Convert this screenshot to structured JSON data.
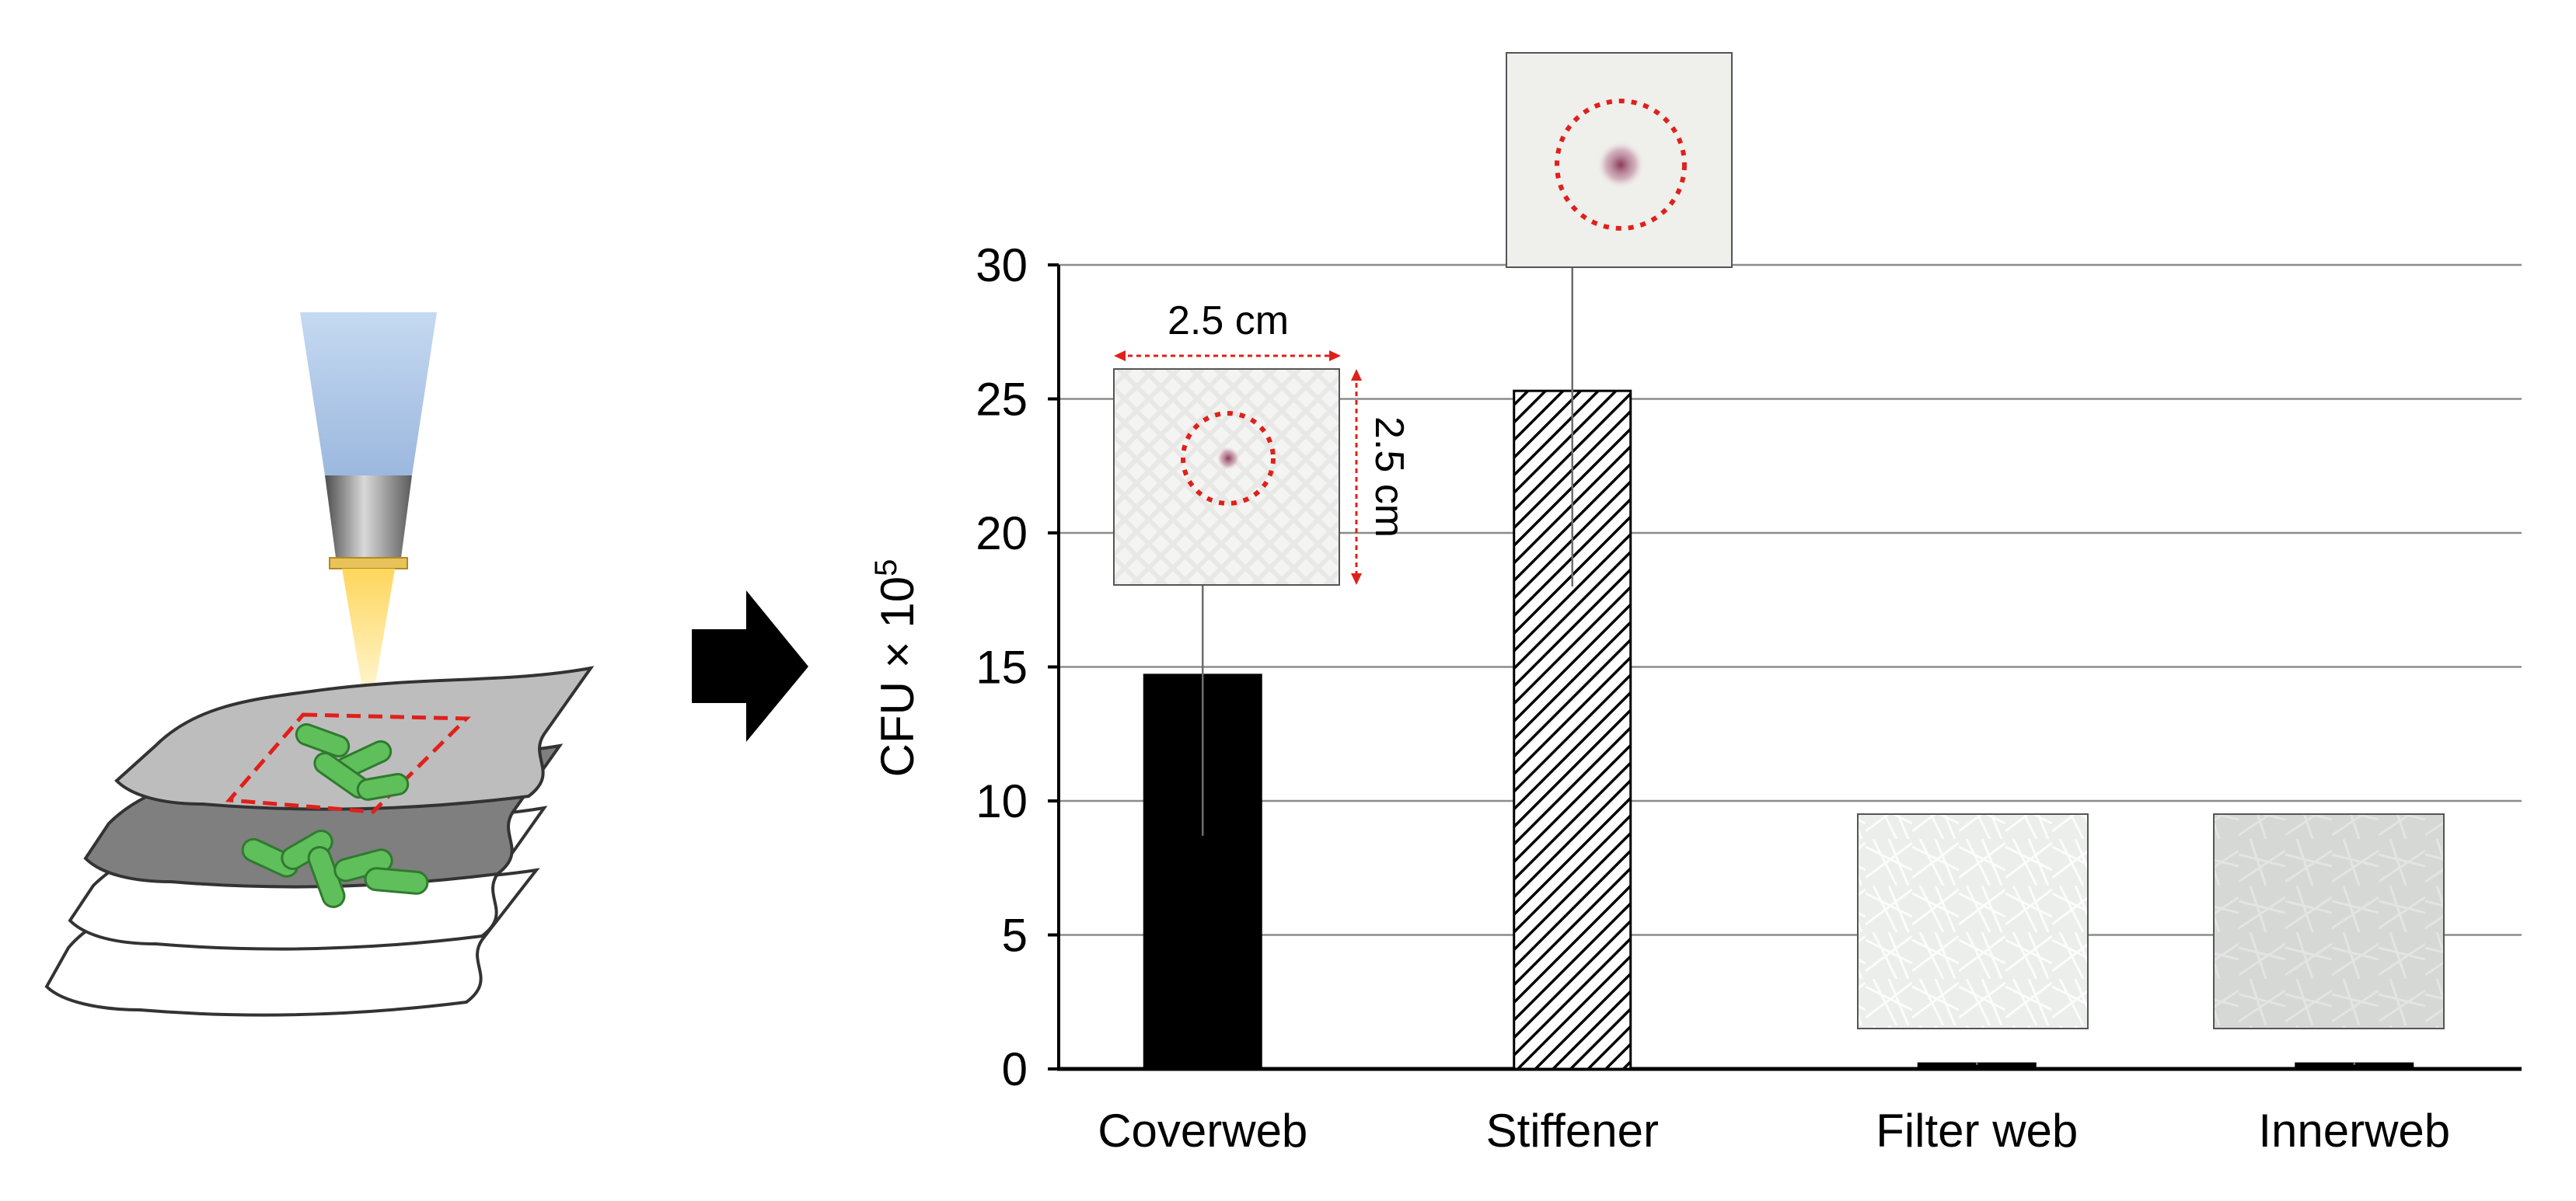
{
  "chart_data": {
    "type": "bar",
    "categories": [
      "Coverweb",
      "Stiffener",
      "Filter web",
      "Innerweb"
    ],
    "values": [
      14.7,
      25.3,
      0.2,
      0.2
    ],
    "error_minus": [
      6.0,
      7.3,
      0.05,
      0.05
    ],
    "error_plus": [
      6.0,
      7.3,
      0.05,
      0.05
    ],
    "ylabel": "CFU × 10",
    "ylabel_superscript": "5",
    "ylim": [
      0,
      30
    ],
    "yticks": [
      0,
      5,
      10,
      15,
      20,
      25,
      30
    ],
    "ytick_labels": [
      "0",
      "5",
      "10",
      "15",
      "20",
      "25",
      "30"
    ],
    "grid": true,
    "bar_styles": [
      "solid-black",
      "diagonal-hatch",
      "solid-black",
      "solid-black"
    ],
    "annotations": {
      "width_label": "2.5 cm",
      "height_label": "2.5 cm"
    }
  },
  "colors": {
    "bar": "#000000",
    "grid": "#8c8c8c",
    "dashed_marker": "#e0201b",
    "bacteria": "#5fbf5a",
    "sheet_top": "#bdbdbd",
    "sheet_second": "#7f7f7f",
    "nozzle": "#c9dcf2",
    "beam": "#ffe38a",
    "arrow": "#000000"
  },
  "illustration": {
    "icons": [
      "nozzle-icon",
      "layered-sheet-icon",
      "bacteria-icon",
      "right-arrow-icon",
      "sample-photo"
    ]
  }
}
